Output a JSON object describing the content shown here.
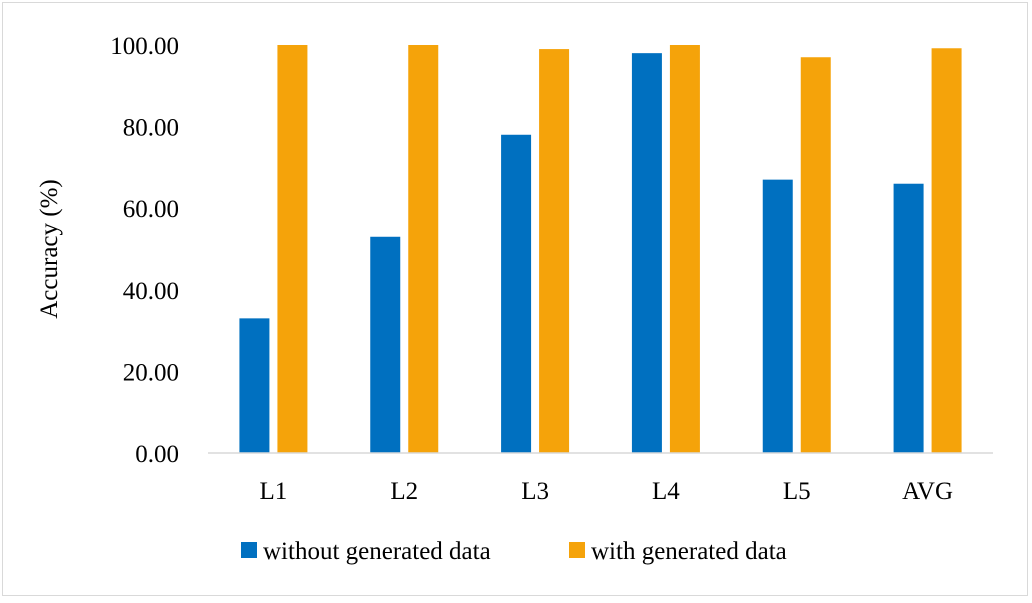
{
  "chart_data": {
    "type": "bar",
    "categories": [
      "L1",
      "L2",
      "L3",
      "L4",
      "L5",
      "AVG"
    ],
    "series": [
      {
        "name": "without generated data",
        "color": "#0070C0",
        "values": [
          33.0,
          53.0,
          78.0,
          98.0,
          67.0,
          66.0
        ]
      },
      {
        "name": "with generated data",
        "color": "#F5A30A",
        "values": [
          100.0,
          100.0,
          99.0,
          100.0,
          97.0,
          99.2
        ]
      }
    ],
    "ylabel": "Accuracy (%)",
    "xlabel": "",
    "ylim": [
      0,
      100
    ],
    "yticks": [
      "0.00",
      "20.00",
      "40.00",
      "60.00",
      "80.00",
      "100.00"
    ],
    "grid": false,
    "legend": "bottom-center"
  }
}
